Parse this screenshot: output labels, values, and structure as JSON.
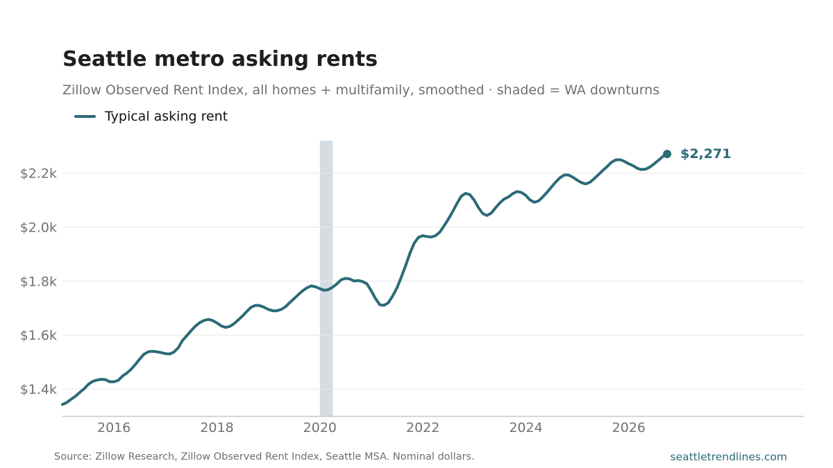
{
  "colors": {
    "line": "#2c6a78",
    "shade": "#d5dde2",
    "grid": "#e6e6e6",
    "axis": "#c8c8c8",
    "tick": "#707070",
    "annotation": "#2c6a78"
  },
  "chart_data": {
    "type": "line",
    "title": "Seattle metro asking rents",
    "subtitle": "Zillow Observed Rent Index, all homes + multifamily, smoothed · shaded = WA downturns",
    "legend": {
      "position": "top-left",
      "entries": [
        "Typical asking rent"
      ]
    },
    "xlim": [
      2015.0,
      2029.4
    ],
    "ylim": [
      1300,
      2320
    ],
    "grid": {
      "y": true,
      "x": false
    },
    "x_ticks": [
      2016,
      2018,
      2020,
      2022,
      2024,
      2026
    ],
    "x_tick_labels": [
      "2016",
      "2018",
      "2020",
      "2022",
      "2024",
      "2026"
    ],
    "y_ticks": [
      1400,
      1600,
      1800,
      2000,
      2200
    ],
    "y_tick_labels": [
      "$1.4k",
      "$1.6k",
      "$1.8k",
      "$2.0k",
      "$2.2k"
    ],
    "shaded_regions": [
      {
        "x0": 2020.0,
        "x1": 2020.25
      }
    ],
    "series": [
      {
        "name": "Typical asking rent",
        "x_start": 2015.0,
        "x_step": 0.0833,
        "values": [
          1343,
          1350,
          1362,
          1373,
          1387,
          1400,
          1417,
          1428,
          1433,
          1436,
          1435,
          1427,
          1427,
          1432,
          1448,
          1459,
          1473,
          1491,
          1511,
          1529,
          1538,
          1540,
          1538,
          1535,
          1531,
          1530,
          1537,
          1553,
          1580,
          1598,
          1616,
          1633,
          1646,
          1654,
          1658,
          1654,
          1645,
          1634,
          1628,
          1632,
          1642,
          1656,
          1671,
          1688,
          1703,
          1710,
          1709,
          1703,
          1695,
          1690,
          1690,
          1695,
          1705,
          1720,
          1735,
          1750,
          1764,
          1775,
          1782,
          1779,
          1772,
          1766,
          1768,
          1777,
          1790,
          1805,
          1810,
          1808,
          1800,
          1802,
          1798,
          1790,
          1764,
          1735,
          1712,
          1710,
          1720,
          1745,
          1775,
          1815,
          1856,
          1902,
          1940,
          1962,
          1968,
          1965,
          1963,
          1968,
          1982,
          2005,
          2030,
          2058,
          2088,
          2115,
          2125,
          2120,
          2100,
          2072,
          2050,
          2043,
          2052,
          2072,
          2090,
          2104,
          2112,
          2124,
          2132,
          2128,
          2118,
          2101,
          2092,
          2097,
          2112,
          2129,
          2148,
          2167,
          2183,
          2193,
          2193,
          2185,
          2174,
          2165,
          2160,
          2166,
          2180,
          2195,
          2210,
          2224,
          2240,
          2249,
          2250,
          2244,
          2235,
          2228,
          2218,
          2213,
          2215,
          2223,
          2235,
          2248,
          2262,
          2271
        ],
        "end_label": "$2,271"
      }
    ],
    "source": "Source: Zillow Research, Zillow Observed Rent Index, Seattle MSA. Nominal dollars.",
    "site": "seattletrendlines.com"
  }
}
